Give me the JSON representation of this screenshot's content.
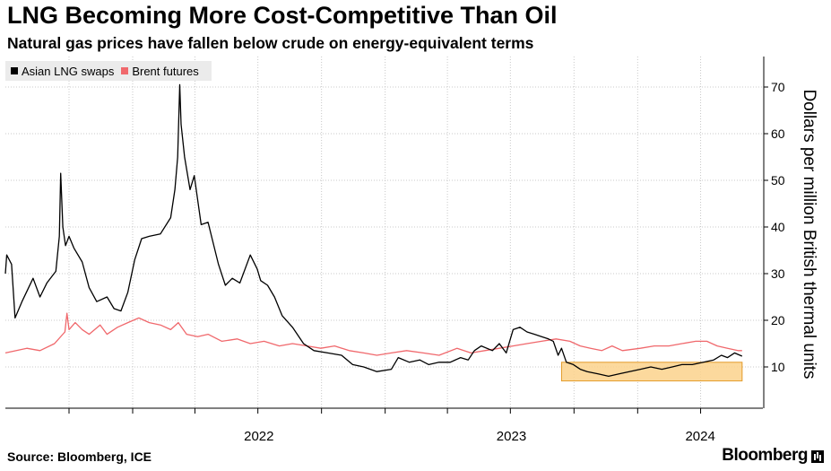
{
  "title": "LNG Becoming More Cost-Competitive Than Oil",
  "subtitle": "Natural gas prices have fallen below crude on energy-equivalent terms",
  "source": "Source: Bloomberg, ICE",
  "brand": "Bloomberg",
  "colors": {
    "lng": "#000000",
    "brent": "#f0686c",
    "highlight_fill": "#fcd28c",
    "highlight_stroke": "#e39b29"
  },
  "chart_data": {
    "type": "line",
    "title": "LNG Becoming More Cost-Competitive Than Oil",
    "subtitle": "Natural gas prices have fallen below crude on energy-equivalent terms",
    "ylabel": "Dollars per million British thermal units",
    "ylim": [
      0,
      75
    ],
    "yticks": [
      10,
      20,
      30,
      40,
      50,
      60,
      70
    ],
    "y_axis_side": "right",
    "xlim": [
      "2021-07-01",
      "2024-06-30"
    ],
    "xticks": [
      {
        "label": "2022",
        "date": "2022-01-01"
      },
      {
        "label": "2023",
        "date": "2023-01-01"
      },
      {
        "label": "2024",
        "date": "2024-01-01"
      }
    ],
    "grid": true,
    "legend": "top-left",
    "highlight": {
      "x": [
        "2023-09-13",
        "2024-05-31"
      ],
      "y": [
        7,
        11
      ]
    },
    "series": [
      {
        "name": "Asian LNG swaps",
        "points": [
          [
            "2021-07-01",
            30.0
          ],
          [
            "2021-07-03",
            34.0
          ],
          [
            "2021-07-10",
            32.0
          ],
          [
            "2021-07-15",
            20.5
          ],
          [
            "2021-07-25",
            24.0
          ],
          [
            "2021-08-10",
            29.0
          ],
          [
            "2021-08-20",
            25.0
          ],
          [
            "2021-08-30",
            28.0
          ],
          [
            "2021-09-12",
            30.5
          ],
          [
            "2021-09-17",
            38.0
          ],
          [
            "2021-09-19",
            51.5
          ],
          [
            "2021-09-22",
            40.0
          ],
          [
            "2021-09-26",
            36.0
          ],
          [
            "2021-10-01",
            38.0
          ],
          [
            "2021-10-08",
            35.5
          ],
          [
            "2021-10-20",
            32.5
          ],
          [
            "2021-10-30",
            27.0
          ],
          [
            "2021-11-10",
            24.0
          ],
          [
            "2021-11-25",
            25.0
          ],
          [
            "2021-12-05",
            22.5
          ],
          [
            "2021-12-15",
            22.0
          ],
          [
            "2021-12-25",
            26.0
          ],
          [
            "2022-01-04",
            33.0
          ],
          [
            "2022-01-14",
            37.5
          ],
          [
            "2022-01-25",
            38.0
          ],
          [
            "2022-02-10",
            38.5
          ],
          [
            "2022-02-25",
            42.0
          ],
          [
            "2022-03-03",
            48.0
          ],
          [
            "2022-03-07",
            55.0
          ],
          [
            "2022-03-10",
            70.5
          ],
          [
            "2022-03-12",
            62.0
          ],
          [
            "2022-03-17",
            55.0
          ],
          [
            "2022-03-25",
            48.0
          ],
          [
            "2022-03-31",
            51.0
          ],
          [
            "2022-04-10",
            40.5
          ],
          [
            "2022-04-20",
            41.0
          ],
          [
            "2022-05-05",
            32.0
          ],
          [
            "2022-05-15",
            27.5
          ],
          [
            "2022-05-25",
            29.0
          ],
          [
            "2022-06-05",
            28.0
          ],
          [
            "2022-06-20",
            34.0
          ],
          [
            "2022-06-30",
            31.0
          ],
          [
            "2022-07-05",
            28.5
          ],
          [
            "2022-07-15",
            27.5
          ],
          [
            "2022-07-25",
            25.0
          ],
          [
            "2022-08-05",
            21.0
          ],
          [
            "2022-08-20",
            18.5
          ],
          [
            "2022-09-05",
            15.0
          ],
          [
            "2022-09-20",
            13.5
          ],
          [
            "2022-10-10",
            13.0
          ],
          [
            "2022-10-30",
            12.5
          ],
          [
            "2022-11-15",
            10.5
          ],
          [
            "2022-12-01",
            10.0
          ],
          [
            "2022-12-20",
            9.0
          ],
          [
            "2023-01-10",
            9.5
          ],
          [
            "2023-01-20",
            12.0
          ],
          [
            "2023-02-05",
            11.0
          ],
          [
            "2023-02-20",
            11.5
          ],
          [
            "2023-03-05",
            10.5
          ],
          [
            "2023-03-20",
            11.0
          ],
          [
            "2023-04-05",
            11.0
          ],
          [
            "2023-04-20",
            12.0
          ],
          [
            "2023-05-01",
            11.5
          ],
          [
            "2023-05-10",
            13.5
          ],
          [
            "2023-05-20",
            14.5
          ],
          [
            "2023-06-05",
            13.5
          ],
          [
            "2023-06-15",
            15.0
          ],
          [
            "2023-06-25",
            13.0
          ],
          [
            "2023-07-05",
            18.0
          ],
          [
            "2023-07-15",
            18.5
          ],
          [
            "2023-07-25",
            17.5
          ],
          [
            "2023-08-05",
            17.0
          ],
          [
            "2023-08-15",
            16.5
          ],
          [
            "2023-08-25",
            16.0
          ],
          [
            "2023-09-01",
            15.5
          ],
          [
            "2023-09-08",
            12.5
          ],
          [
            "2023-09-13",
            14.0
          ],
          [
            "2023-09-20",
            11.0
          ],
          [
            "2023-09-30",
            10.5
          ],
          [
            "2023-10-10",
            9.5
          ],
          [
            "2023-10-20",
            9.0
          ],
          [
            "2023-11-05",
            8.5
          ],
          [
            "2023-11-20",
            8.0
          ],
          [
            "2023-12-05",
            8.5
          ],
          [
            "2023-12-20",
            9.0
          ],
          [
            "2024-01-05",
            9.5
          ],
          [
            "2024-01-20",
            10.0
          ],
          [
            "2024-02-05",
            9.5
          ],
          [
            "2024-02-20",
            10.0
          ],
          [
            "2024-03-05",
            10.5
          ],
          [
            "2024-03-20",
            10.5
          ],
          [
            "2024-04-05",
            11.0
          ],
          [
            "2024-04-20",
            11.5
          ],
          [
            "2024-05-01",
            12.5
          ],
          [
            "2024-05-10",
            12.0
          ],
          [
            "2024-05-20",
            13.0
          ],
          [
            "2024-05-31",
            12.3
          ]
        ]
      },
      {
        "name": "Brent futures",
        "points": [
          [
            "2021-07-01",
            13.0
          ],
          [
            "2021-08-01",
            14.0
          ],
          [
            "2021-08-20",
            13.5
          ],
          [
            "2021-09-10",
            15.0
          ],
          [
            "2021-09-25",
            17.5
          ],
          [
            "2021-09-28",
            21.5
          ],
          [
            "2021-10-01",
            18.0
          ],
          [
            "2021-10-10",
            19.5
          ],
          [
            "2021-10-20",
            18.0
          ],
          [
            "2021-10-30",
            17.0
          ],
          [
            "2021-11-15",
            19.0
          ],
          [
            "2021-11-25",
            17.0
          ],
          [
            "2021-12-10",
            18.5
          ],
          [
            "2021-12-25",
            19.5
          ],
          [
            "2022-01-10",
            20.5
          ],
          [
            "2022-01-25",
            19.5
          ],
          [
            "2022-02-10",
            19.0
          ],
          [
            "2022-02-25",
            18.0
          ],
          [
            "2022-03-08",
            19.5
          ],
          [
            "2022-03-20",
            17.0
          ],
          [
            "2022-04-05",
            16.5
          ],
          [
            "2022-04-20",
            17.0
          ],
          [
            "2022-05-10",
            15.5
          ],
          [
            "2022-06-01",
            16.0
          ],
          [
            "2022-06-20",
            15.0
          ],
          [
            "2022-07-10",
            15.5
          ],
          [
            "2022-08-01",
            14.5
          ],
          [
            "2022-08-20",
            15.0
          ],
          [
            "2022-09-10",
            14.5
          ],
          [
            "2022-09-30",
            14.0
          ],
          [
            "2022-10-20",
            14.5
          ],
          [
            "2022-11-10",
            13.5
          ],
          [
            "2022-12-01",
            13.0
          ],
          [
            "2022-12-20",
            12.5
          ],
          [
            "2023-01-10",
            13.0
          ],
          [
            "2023-02-01",
            13.5
          ],
          [
            "2023-02-25",
            13.0
          ],
          [
            "2023-03-20",
            12.5
          ],
          [
            "2023-04-15",
            14.0
          ],
          [
            "2023-05-05",
            13.0
          ],
          [
            "2023-05-25",
            13.5
          ],
          [
            "2023-06-15",
            14.0
          ],
          [
            "2023-07-05",
            14.5
          ],
          [
            "2023-07-25",
            15.0
          ],
          [
            "2023-08-15",
            15.5
          ],
          [
            "2023-09-05",
            16.0
          ],
          [
            "2023-09-25",
            15.5
          ],
          [
            "2023-10-10",
            14.5
          ],
          [
            "2023-10-25",
            14.0
          ],
          [
            "2023-11-10",
            13.5
          ],
          [
            "2023-11-25",
            14.5
          ],
          [
            "2023-12-10",
            13.5
          ],
          [
            "2024-01-05",
            14.0
          ],
          [
            "2024-01-25",
            14.5
          ],
          [
            "2024-02-15",
            14.5
          ],
          [
            "2024-03-05",
            15.0
          ],
          [
            "2024-03-25",
            15.5
          ],
          [
            "2024-04-10",
            15.5
          ],
          [
            "2024-04-25",
            14.5
          ],
          [
            "2024-05-10",
            14.0
          ],
          [
            "2024-05-25",
            13.5
          ],
          [
            "2024-05-31",
            13.5
          ]
        ]
      }
    ]
  }
}
